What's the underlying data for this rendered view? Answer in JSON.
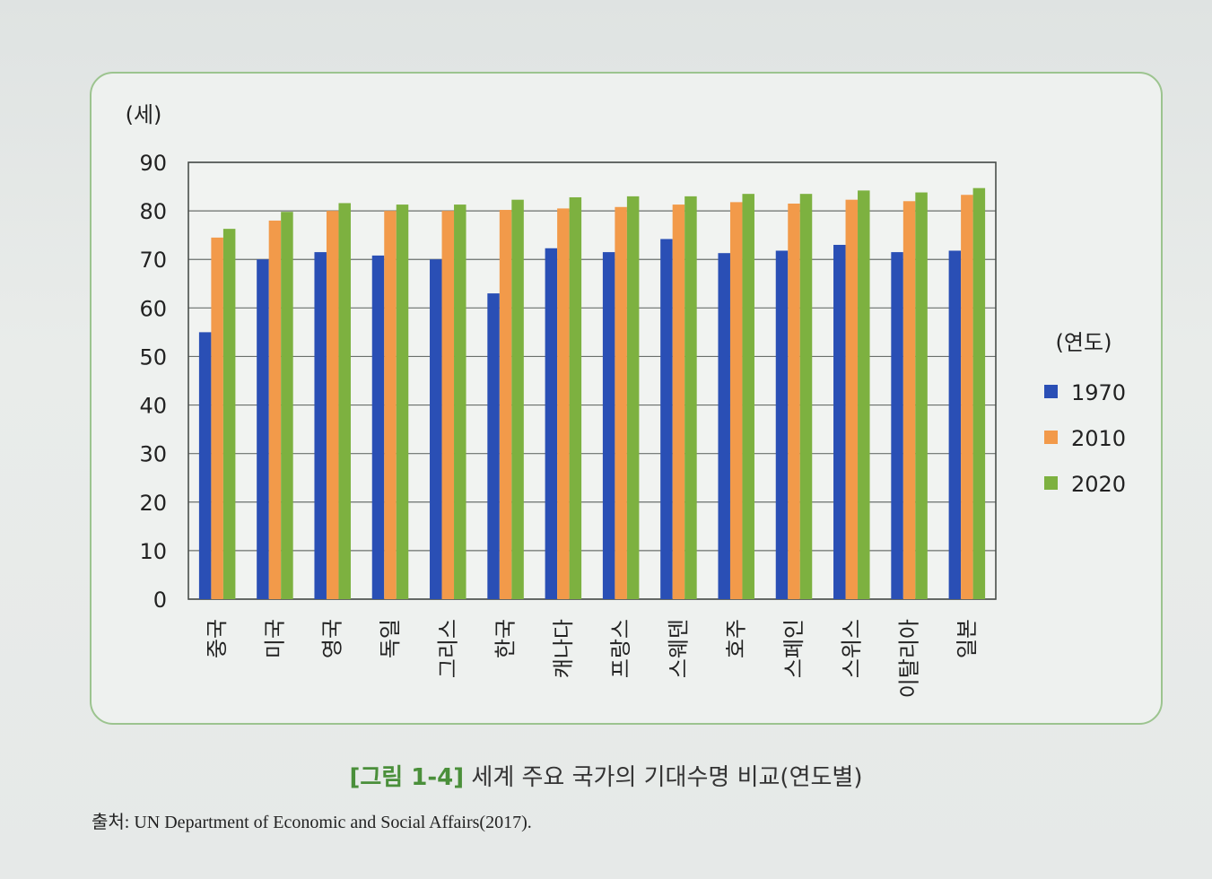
{
  "chart_data": {
    "type": "bar",
    "ylabel": "(세)",
    "ylim": [
      0,
      90
    ],
    "yticks": [
      0,
      10,
      20,
      30,
      40,
      50,
      60,
      70,
      80,
      90
    ],
    "categories": [
      "중국",
      "미국",
      "영국",
      "독일",
      "그리스",
      "한국",
      "캐나다",
      "프랑스",
      "스웨덴",
      "호주",
      "스페인",
      "스위스",
      "이탈리아",
      "일본"
    ],
    "legend_title": "(연도)",
    "legend_position": "right",
    "grid": true,
    "series": [
      {
        "name": "1970",
        "color": "#2a4fb5",
        "values": [
          55,
          70,
          71.5,
          70.8,
          70,
          63,
          72.3,
          71.5,
          74.2,
          71.3,
          71.8,
          73,
          71.5,
          71.8
        ]
      },
      {
        "name": "2010",
        "color": "#f29a4a",
        "values": [
          74.5,
          78,
          80,
          80,
          80,
          80.2,
          80.5,
          80.8,
          81.3,
          81.8,
          81.5,
          82.3,
          82,
          83.3
        ]
      },
      {
        "name": "2020",
        "color": "#7db140",
        "values": [
          76.3,
          79.8,
          81.6,
          81.3,
          81.3,
          82.3,
          82.8,
          83,
          83,
          83.5,
          83.5,
          84.2,
          83.8,
          84.7
        ]
      }
    ]
  },
  "caption": {
    "figure_number": "[그림 1-4]",
    "title": "세계 주요 국가의 기대수명 비교(연도별)"
  },
  "source": "출처: UN Department of Economic and Social Affairs(2017)."
}
